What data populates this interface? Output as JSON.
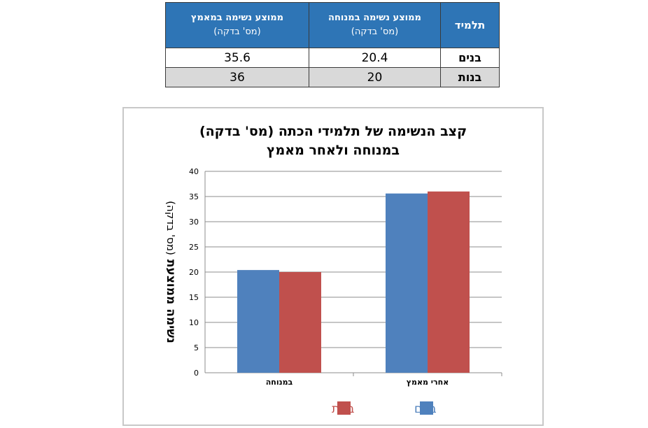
{
  "table": {
    "headers": {
      "student": "תלמיד",
      "rest_title": "ממוצע נשימה במנוחה",
      "rest_unit": "(מס'  בדקה)",
      "exercise_title": "ממוצע נשימה במאמץ",
      "exercise_unit": "(מס' בדקה)"
    },
    "rows": [
      {
        "name": "בנים",
        "rest": "20.4",
        "exercise": "35.6"
      },
      {
        "name": "בנות",
        "rest": "20",
        "exercise": "36"
      }
    ]
  },
  "colors": {
    "table_header": "#2e75b6",
    "boys": "#4f81bd",
    "girls": "#c0504d"
  },
  "chart_data": {
    "type": "bar",
    "title": [
      "קצב הנשימה של תלמידי הכתה (מס' בדקה)",
      "במנוחה ולאחר מאמץ"
    ],
    "ylabel_bold": "נשימה ממוצעת",
    "ylabel_unit": "(מס' בדקה)",
    "xlabel": "",
    "categories": [
      "במנוחה",
      "אחרי מאמץ"
    ],
    "series": [
      {
        "name": "בנים",
        "color": "#4f81bd",
        "values": [
          20.4,
          35.6
        ]
      },
      {
        "name": "בנות",
        "color": "#c0504d",
        "values": [
          20,
          36
        ]
      }
    ],
    "ylim": [
      0,
      40
    ],
    "yticks": [
      "0",
      "5",
      "10",
      "15",
      "20",
      "25",
      "30",
      "35",
      "40"
    ],
    "grid": true,
    "legend_position": "bottom"
  }
}
